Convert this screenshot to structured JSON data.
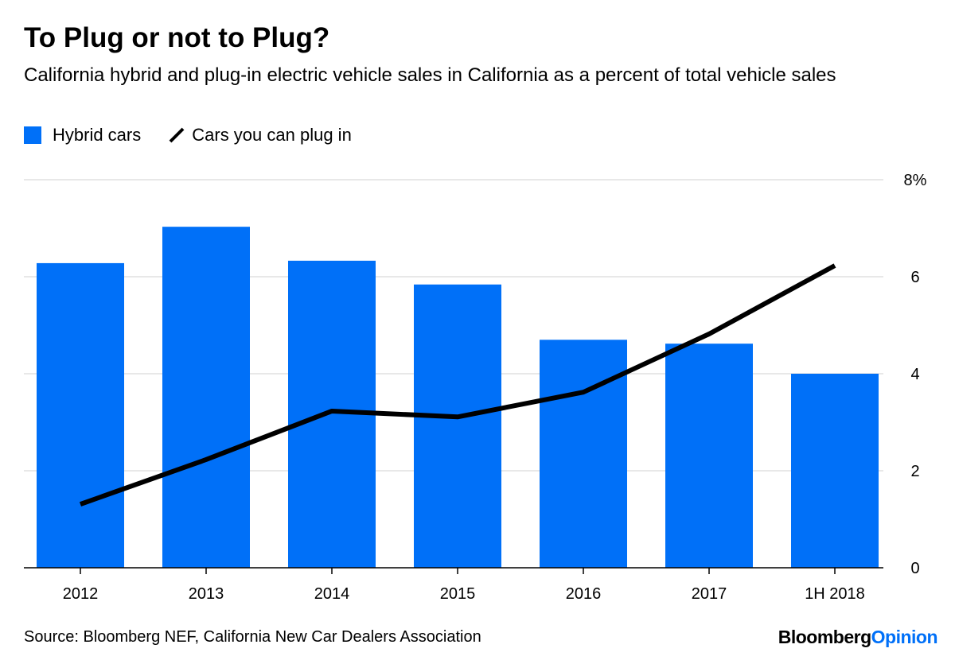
{
  "title": "To Plug or not to Plug?",
  "subtitle": "California hybrid and plug-in electric vehicle sales in California as a percent of total vehicle sales",
  "source": "Source: Bloomberg NEF, California New Car Dealers Association",
  "logo": {
    "part1": "Bloomberg",
    "part2": "Opinion",
    "color1": "#000000",
    "color2": "#0070f8"
  },
  "chart_data": {
    "type": "bar+line",
    "categories": [
      "2012",
      "2013",
      "2014",
      "2015",
      "2016",
      "2017",
      "1H 2018"
    ],
    "series": [
      {
        "name": "Hybrid cars",
        "type": "bar",
        "color": "#0070f8",
        "values": [
          6.28,
          7.03,
          6.33,
          5.84,
          4.7,
          4.62,
          4.0
        ]
      },
      {
        "name": "Cars you can plug in",
        "type": "line",
        "color": "#000000",
        "values": [
          1.31,
          2.23,
          3.23,
          3.11,
          3.62,
          4.82,
          6.23
        ]
      }
    ],
    "ylim": [
      0,
      8
    ],
    "yticks": [
      {
        "v": 0,
        "label": "0"
      },
      {
        "v": 2,
        "label": "2"
      },
      {
        "v": 4,
        "label": "4"
      },
      {
        "v": 6,
        "label": "6"
      },
      {
        "v": 8,
        "label": "8%"
      }
    ],
    "yaxis_side": "right",
    "grid": true,
    "legend": "top-left"
  }
}
